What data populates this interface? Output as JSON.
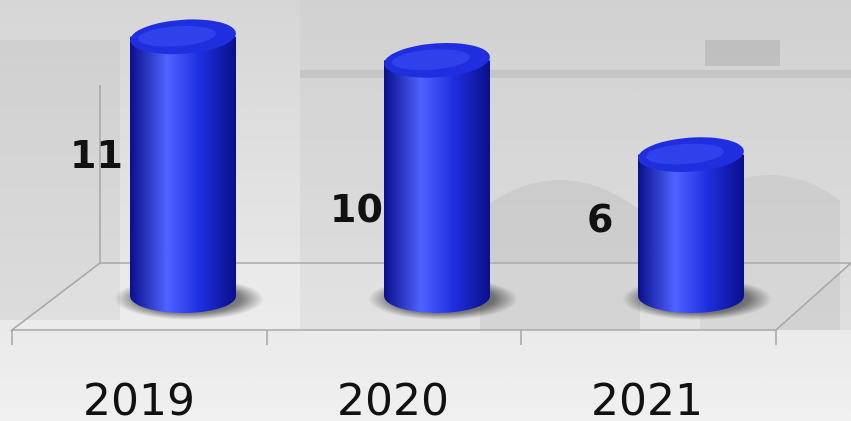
{
  "chart_data": {
    "type": "bar",
    "style": "3d-cylinder",
    "title": "",
    "xlabel": "",
    "ylabel": "",
    "categories": [
      "2019",
      "2020",
      "2021"
    ],
    "values": [
      11,
      10,
      6
    ],
    "ylim": [
      0,
      11.5
    ],
    "grid": false,
    "legend": "none",
    "bar_color": "#1f2fe0",
    "bar_highlight": "#4e63ff",
    "bar_shadow": "#0a0f8a"
  }
}
